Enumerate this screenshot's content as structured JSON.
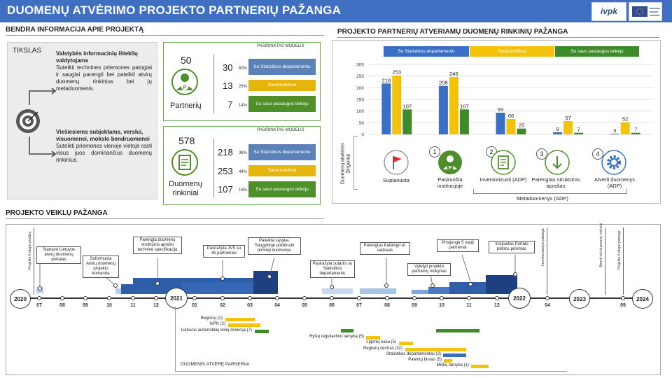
{
  "header": {
    "title": "DUOMENŲ ATVĖRIMO PROJEKTO PARTNERIŲ PAŽANGA",
    "logo_text": "ivpk"
  },
  "general": {
    "section_title": "BENDRA INFORMACIJA APIE PROJEKTĄ",
    "goal_label": "TIKSLAS",
    "goal1_title": "Valstybės informacinių išteklių valdytojams",
    "goal1_text": "Suteikti technines priemones patogiai ir saugiai parengti bei pateikti atvirų duomenų rinkinius bei jų metaduomenis.",
    "goal2_title": "Viešiesiems subjektams, verslui, visuomenei, mokslo bendruomenei",
    "goal2_text": "Suteikti priemones vienoje vietoje rasti visus juos dominančius duomenų rinkinius."
  },
  "partners": {
    "model_label": "PASIRINKTAS MODELIS",
    "total": "50",
    "label": "Partnerių",
    "rows": [
      {
        "count": "30",
        "pct": "60%",
        "text": "Su Statistikos departamentu"
      },
      {
        "count": "13",
        "pct": "26%",
        "text": "Savarankiškai"
      },
      {
        "count": "7",
        "pct": "14%",
        "text": "Su savo paslaugos teikėju"
      }
    ]
  },
  "datasets": {
    "model_label": "PASIRINKTAS MODELIS",
    "total": "578",
    "label": "Duomenų rinkiniai",
    "rows": [
      {
        "count": "218",
        "pct": "38%",
        "text": "Su Statistikos departamentu"
      },
      {
        "count": "253",
        "pct": "44%",
        "text": "Savarankiškai"
      },
      {
        "count": "107",
        "pct": "18%",
        "text": "Su savo paslaugos teikėju"
      }
    ]
  },
  "progress": {
    "section_title": "PROJEKTO PARTNERIŲ ATVERIAMŲ DUOMENŲ RINKINIŲ PAŽANGA",
    "axis_label": "Duomenų atvėrimo žingsniai",
    "metadata_label": "Metaduomenys (ADP)",
    "steps": [
      {
        "num": "",
        "label": "Suplanuota"
      },
      {
        "num": "1",
        "label": "Pasiruošta institucijoje"
      },
      {
        "num": "2",
        "label": "Inventorizuoti (ADP)"
      },
      {
        "num": "3",
        "label": "Parengtas struktūros aprašas"
      },
      {
        "num": "4",
        "label": "Atverti duomenys (ADP)"
      }
    ]
  },
  "chart_data": {
    "type": "bar",
    "categories": [
      "Suplanuota",
      "Pasiruošta institucijoje",
      "Inventorizuoti (ADP)",
      "Parengtas struktūros aprašas",
      "Atverti duomenys (ADP)"
    ],
    "series": [
      {
        "name": "Su Statistikos departamentu",
        "values": [
          218,
          208,
          93,
          9,
          3
        ],
        "color": "#3a6fc6"
      },
      {
        "name": "Savarankiškai",
        "values": [
          253,
          246,
          66,
          57,
          52
        ],
        "color": "#f3c20d"
      },
      {
        "name": "Su savo paslaugos teikėju",
        "values": [
          107,
          107,
          25,
          7,
          7
        ],
        "color": "#3f8b2c"
      }
    ],
    "ylim": [
      0,
      300
    ],
    "yticks": [
      0,
      50,
      100,
      150,
      200,
      250,
      300
    ],
    "legend": "top",
    "grid": true
  },
  "timeline": {
    "section_title": "PROJEKTO VEIKLŲ PAŽANGA",
    "years": [
      "2020",
      "2021",
      "2022",
      "2023",
      "2024"
    ],
    "months": [
      "07",
      "08",
      "09",
      "10",
      "11",
      "12",
      "01",
      "02",
      "03",
      "04",
      "05",
      "06",
      "07",
      "08",
      "09",
      "10",
      "11",
      "12",
      "04",
      "09"
    ],
    "notes": [
      "Startavo Lietuvos atvirų duomenų portalas",
      "Suformuota Atvirų duomenų projekto komanda",
      "Parengta duomenų struktūros aprašo techninė specifikacija",
      "Pasirašyta JVS su 45 partneriais",
      "Pateikta sąsyka. Saugykloje publikuoti pirmieji duomenys",
      "Pasirašyta sutartis su Statistikos departamentu",
      "Parengtas Katalogo el. vadovas",
      "Vykdyti projekto partnerių mokymai",
      "Prisijungė 5 nauji partneriai",
      "Inicijuotas Portalo plėtros pirkimas"
    ],
    "vlabels": [
      "Projekto II etapo pradžia",
      "Inventorizacijos pabaiga",
      "Atverti visi duomenų rinkiniai",
      "Projekto II etapo pabaiga"
    ],
    "gantt": [
      "Registrų (2)",
      "IVPK (2)",
      "Lietuvos automobilių kelių direkcija (7)",
      "Ryšių reguliavimo tarnyba (5)",
      "Ligonių kasa (5)",
      "Registrų centras (32)",
      "Statistikos departamentas (3)",
      "Patentų biuras (5)",
      "Miškų tarnyba (1)"
    ],
    "opened_label": "DUOMENIS ATVĖRĘ PARNERIAI"
  }
}
